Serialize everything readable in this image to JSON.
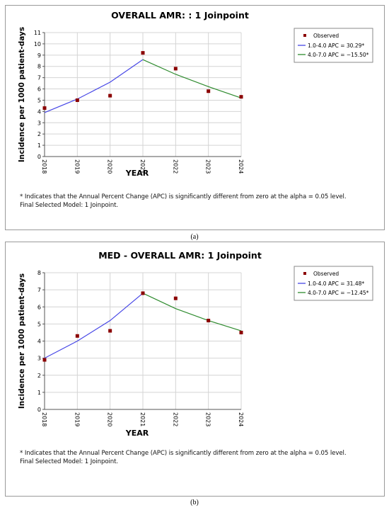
{
  "charts": [
    {
      "caption": "(a)",
      "footnote_line1": "* Indicates that the Annual Percent Change (APC) is significantly different from zero at the alpha = 0.05 level.",
      "footnote_line2": "Final Selected Model: 1 Joinpoint.",
      "legend": {
        "observed_label": "Observed",
        "seg1_label": "1.0-4.0 APC  =  30.29*",
        "seg2_label": "4.0-7.0 APC  = −15.50*"
      },
      "chart_data": {
        "type": "line",
        "title": "OVERALL AMR: : 1 Joinpoint",
        "xlabel": "YEAR",
        "ylabel": "Incidence per 1000 patient-days",
        "x_tick_labels": [
          "2018",
          "2019",
          "2020",
          "2021",
          "2022",
          "2023",
          "2024"
        ],
        "x_ticks": [
          1,
          2,
          3,
          4,
          5,
          6,
          7
        ],
        "y_ticks": [
          0,
          1,
          2,
          3,
          4,
          5,
          6,
          7,
          8,
          9,
          10,
          11
        ],
        "xlim": [
          1,
          7
        ],
        "ylim": [
          0,
          11
        ],
        "grid": true,
        "legend_position": "top-right",
        "observed": {
          "x": [
            1,
            2,
            3,
            4,
            5,
            6,
            7
          ],
          "y": [
            4.3,
            5.0,
            5.4,
            9.2,
            7.8,
            5.8,
            5.3
          ]
        },
        "fitted_segments": [
          {
            "color": "#4646e6",
            "x": [
              1,
              2,
              3,
              4
            ],
            "y": [
              3.9,
              5.1,
              6.6,
              8.6
            ]
          },
          {
            "color": "#2e8b2e",
            "x": [
              4,
              5,
              6,
              7
            ],
            "y": [
              8.6,
              7.3,
              6.2,
              5.2
            ]
          }
        ],
        "colors": {
          "observed": "#8b0000",
          "seg1": "#4646e6",
          "seg2": "#2e8b2e"
        }
      }
    },
    {
      "caption": "(b)",
      "footnote_line1": "* Indicates that the Annual Percent Change (APC) is significantly different from zero at the alpha = 0.05 level.",
      "footnote_line2": "Final Selected Model: 1 Joinpoint.",
      "legend": {
        "observed_label": "Observed",
        "seg1_label": "1.0-4.0 APC  =  31.48*",
        "seg2_label": "4.0-7.0 APC  = −12.45*"
      },
      "chart_data": {
        "type": "line",
        "title": "MED - OVERALL AMR: 1 Joinpoint",
        "xlabel": "YEAR",
        "ylabel": "Incidence per 1000 patient-days",
        "x_tick_labels": [
          "2018",
          "2019",
          "2020",
          "2021",
          "2022",
          "2023",
          "2024"
        ],
        "x_ticks": [
          1,
          2,
          3,
          4,
          5,
          6,
          7
        ],
        "y_ticks": [
          0,
          1,
          2,
          3,
          4,
          5,
          6,
          7,
          8
        ],
        "xlim": [
          1,
          7
        ],
        "ylim": [
          0,
          8
        ],
        "grid": true,
        "legend_position": "top-right",
        "observed": {
          "x": [
            1,
            2,
            3,
            4,
            5,
            6,
            7
          ],
          "y": [
            2.9,
            4.3,
            4.6,
            6.8,
            6.5,
            5.2,
            4.5
          ]
        },
        "fitted_segments": [
          {
            "color": "#4646e6",
            "x": [
              1,
              2,
              3,
              4
            ],
            "y": [
              3.0,
              4.0,
              5.2,
              6.8
            ]
          },
          {
            "color": "#2e8b2e",
            "x": [
              4,
              5,
              6,
              7
            ],
            "y": [
              6.8,
              5.9,
              5.2,
              4.6
            ]
          }
        ],
        "colors": {
          "observed": "#8b0000",
          "seg1": "#4646e6",
          "seg2": "#2e8b2e"
        }
      }
    }
  ]
}
